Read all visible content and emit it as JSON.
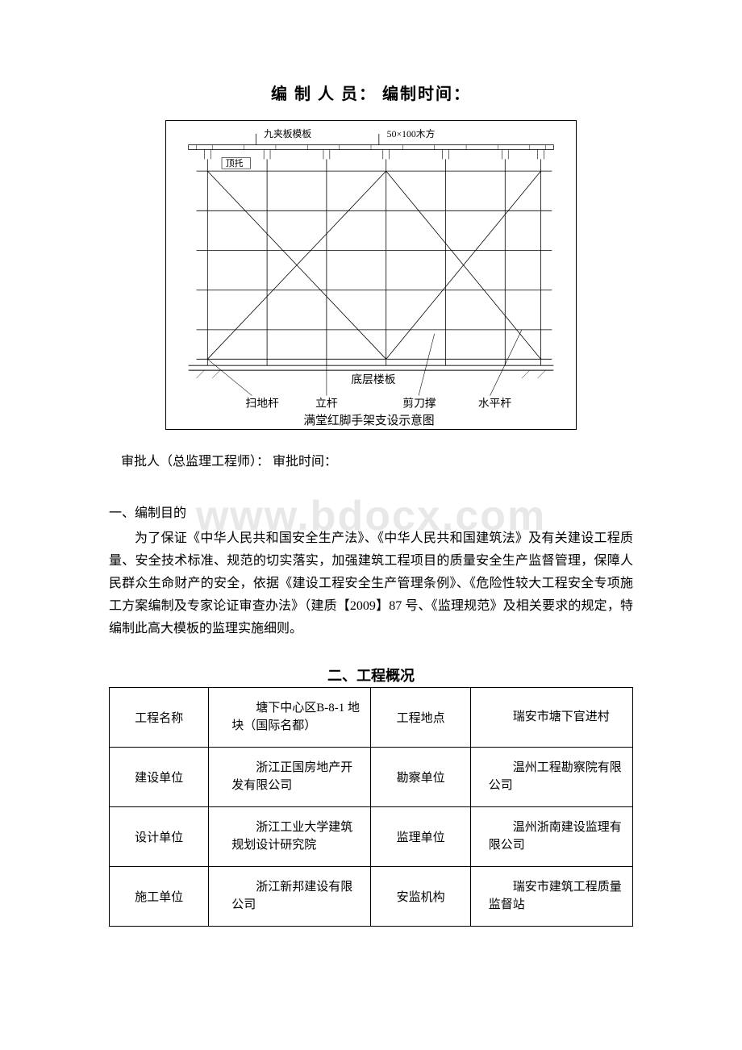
{
  "header": {
    "title": "编 制 人 员： 编制时间："
  },
  "diagram": {
    "top_labels": {
      "left": "九夹板模板",
      "right": "50×100木方"
    },
    "inner_label": "顶托",
    "bottom_inner": "底层楼板",
    "bottom_labels": [
      "扫地杆",
      "立杆",
      "剪刀撑",
      "水平杆"
    ],
    "caption": "满堂红脚手架支设示意图",
    "colors": {
      "line": "#000000",
      "text": "#000000"
    },
    "font_sizes": {
      "label": 12,
      "caption": 15
    }
  },
  "approval": "审批人（总监理工程师）： 审批时间：",
  "section1": {
    "heading": "一、编制目的",
    "body": "为了保证《中华人民共和国安全生产法》、《中华人民共和国建筑法》及有关建设工程质量、安全技术标准、规范的切实落实，加强建筑工程项目的质量安全生产监督管理，保障人民群众生命财产的安全，依据《建设工程安全生产管理条例》、《危险性较大工程安全专项施工方案编制及专家论证审查办法》（建质【2009】87 号、《监理规范》及相关要求的规定，特编制此高大模板的监理实施细则。"
  },
  "section2": {
    "heading": "二、工程概况",
    "rows": [
      {
        "l1": "工程名称",
        "v1": "塘下中心区B-8-1 地块（国际名都）",
        "l2": "工程地点",
        "v2": "瑞安市塘下官进村"
      },
      {
        "l1": "建设单位",
        "v1": "浙江正国房地产开发有限公司",
        "l2": "勘察单位",
        "v2": "温州工程勘察院有限公司"
      },
      {
        "l1": "设计单位",
        "v1": "浙江工业大学建筑规划设计研究院",
        "l2": "监理单位",
        "v2": "温州浙南建设监理有限公司"
      },
      {
        "l1": "施工单位",
        "v1": "浙江新邦建设有限公司",
        "l2": "安监机构",
        "v2": "瑞安市建筑工程质量监督站"
      }
    ]
  },
  "watermark": "www.bdocx.com"
}
